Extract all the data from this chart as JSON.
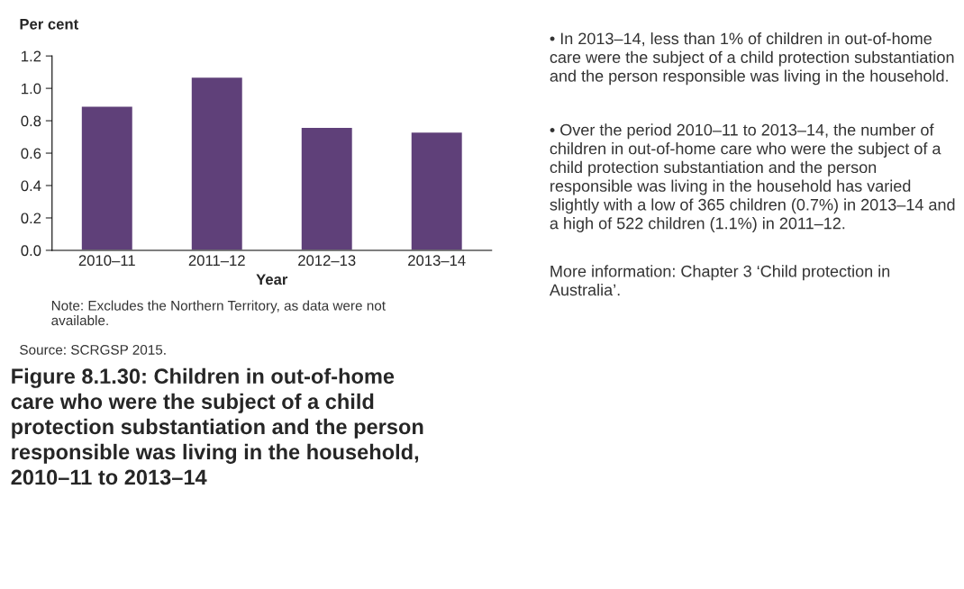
{
  "chart_data": {
    "type": "bar",
    "title": "Figure 8.1.30: Children in out-of-home care who were the subject of a child protection substantiation and the person responsible was living in the household, 2010–11 to 2013–14",
    "ylabel": "Per cent",
    "xlabel": "Year",
    "categories": [
      "2010–11",
      "2011–12",
      "2012–13",
      "2013–14"
    ],
    "values": [
      0.89,
      1.07,
      0.76,
      0.73
    ],
    "color": "#5f4079",
    "ylim": [
      0,
      1.2
    ],
    "yticks": [
      {
        "value": 0,
        "label": "0.0"
      },
      {
        "value": 0.2,
        "label": "0.2"
      },
      {
        "value": 0.4,
        "label": "0.4"
      },
      {
        "value": 0.6,
        "label": "0.6"
      },
      {
        "value": 0.8,
        "label": "0.8"
      },
      {
        "value": 1.0,
        "label": "1.0"
      },
      {
        "value": 1.2,
        "label": "1.2"
      }
    ],
    "grid": false,
    "legend": false,
    "annotations": [
      "Note: Excludes the Northern Territory, as data were not available.",
      "Source: SCRGSP 2015.",
      "• In 2013–14, less than 1% of children in out-of-home care were the subject of a child protection substantiation and the person responsible was living in the household.",
      "• Over the period 2010–11 to 2013–14, the number of children in out-of-home care who were the subject of a child protection substantiation and the person responsible was living in the household has varied slightly with a low of 365 children (0.7%) in 2013–14 and a high of 522 children (1.1%) in 2011–12.",
      "More information: Chapter 3 ‘Child protection in Australia’."
    ]
  }
}
